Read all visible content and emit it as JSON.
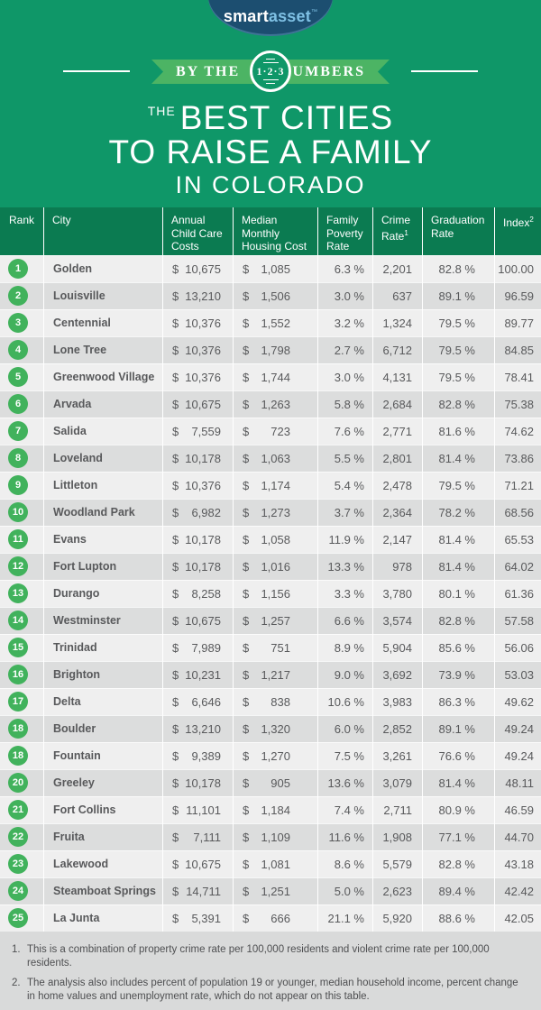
{
  "brand": {
    "logo": {
      "part1": "smart",
      "part2": "asset",
      "tm": "™"
    },
    "colors": {
      "page_green": "#0F9768",
      "header_green": "#0B7B51",
      "ribbon_green": "#4CB464",
      "rank_circle_green": "#41B25C",
      "logo_navy": "#1C4E70",
      "logo_blue": "#7EC0E4",
      "row_light": "#EFEFEF",
      "row_dark": "#DCDDDD",
      "text_gray": "#58595B"
    }
  },
  "banner": {
    "left": "BY THE",
    "circle": "1·2·3",
    "right": "NUMBERS"
  },
  "title": {
    "the": "THE",
    "line1": "BEST CITIES",
    "line2": "TO RAISE A FAMILY",
    "line3": "IN COLORADO"
  },
  "chart_data": {
    "type": "table",
    "title": "The Best Cities to Raise a Family in Colorado",
    "currency": "$",
    "columns": [
      {
        "label": "Rank"
      },
      {
        "label": "City"
      },
      {
        "label": "Annual Child Care Costs"
      },
      {
        "label": "Median Monthly Housing Cost"
      },
      {
        "label": "Family Poverty Rate"
      },
      {
        "label": "Crime Rate",
        "sup": "1"
      },
      {
        "label": "Graduation Rate"
      },
      {
        "label": "Index",
        "sup": "2"
      }
    ],
    "rows": [
      {
        "rank": "1",
        "city": "Golden",
        "child_care": "10,675",
        "housing": "1,085",
        "poverty": "6.3 %",
        "crime": "2,201",
        "graduation": "82.8 %",
        "index": "100.00"
      },
      {
        "rank": "2",
        "city": "Louisville",
        "child_care": "13,210",
        "housing": "1,506",
        "poverty": "3.0 %",
        "crime": "637",
        "graduation": "89.1 %",
        "index": "96.59"
      },
      {
        "rank": "3",
        "city": "Centennial",
        "child_care": "10,376",
        "housing": "1,552",
        "poverty": "3.2 %",
        "crime": "1,324",
        "graduation": "79.5 %",
        "index": "89.77"
      },
      {
        "rank": "4",
        "city": "Lone Tree",
        "child_care": "10,376",
        "housing": "1,798",
        "poverty": "2.7 %",
        "crime": "6,712",
        "graduation": "79.5 %",
        "index": "84.85"
      },
      {
        "rank": "5",
        "city": "Greenwood Village",
        "child_care": "10,376",
        "housing": "1,744",
        "poverty": "3.0 %",
        "crime": "4,131",
        "graduation": "79.5 %",
        "index": "78.41"
      },
      {
        "rank": "6",
        "city": "Arvada",
        "child_care": "10,675",
        "housing": "1,263",
        "poverty": "5.8 %",
        "crime": "2,684",
        "graduation": "82.8 %",
        "index": "75.38"
      },
      {
        "rank": "7",
        "city": "Salida",
        "child_care": "7,559",
        "housing": "723",
        "poverty": "7.6 %",
        "crime": "2,771",
        "graduation": "81.6 %",
        "index": "74.62"
      },
      {
        "rank": "8",
        "city": "Loveland",
        "child_care": "10,178",
        "housing": "1,063",
        "poverty": "5.5 %",
        "crime": "2,801",
        "graduation": "81.4 %",
        "index": "73.86"
      },
      {
        "rank": "9",
        "city": "Littleton",
        "child_care": "10,376",
        "housing": "1,174",
        "poverty": "5.4 %",
        "crime": "2,478",
        "graduation": "79.5 %",
        "index": "71.21"
      },
      {
        "rank": "10",
        "city": "Woodland Park",
        "child_care": "6,982",
        "housing": "1,273",
        "poverty": "3.7 %",
        "crime": "2,364",
        "graduation": "78.2 %",
        "index": "68.56"
      },
      {
        "rank": "11",
        "city": "Evans",
        "child_care": "10,178",
        "housing": "1,058",
        "poverty": "11.9 %",
        "crime": "2,147",
        "graduation": "81.4 %",
        "index": "65.53"
      },
      {
        "rank": "12",
        "city": "Fort Lupton",
        "child_care": "10,178",
        "housing": "1,016",
        "poverty": "13.3 %",
        "crime": "978",
        "graduation": "81.4 %",
        "index": "64.02"
      },
      {
        "rank": "13",
        "city": "Durango",
        "child_care": "8,258",
        "housing": "1,156",
        "poverty": "3.3 %",
        "crime": "3,780",
        "graduation": "80.1 %",
        "index": "61.36"
      },
      {
        "rank": "14",
        "city": "Westminster",
        "child_care": "10,675",
        "housing": "1,257",
        "poverty": "6.6 %",
        "crime": "3,574",
        "graduation": "82.8 %",
        "index": "57.58"
      },
      {
        "rank": "15",
        "city": "Trinidad",
        "child_care": "7,989",
        "housing": "751",
        "poverty": "8.9 %",
        "crime": "5,904",
        "graduation": "85.6 %",
        "index": "56.06"
      },
      {
        "rank": "16",
        "city": "Brighton",
        "child_care": "10,231",
        "housing": "1,217",
        "poverty": "9.0 %",
        "crime": "3,692",
        "graduation": "73.9 %",
        "index": "53.03"
      },
      {
        "rank": "17",
        "city": "Delta",
        "child_care": "6,646",
        "housing": "838",
        "poverty": "10.6 %",
        "crime": "3,983",
        "graduation": "86.3 %",
        "index": "49.62"
      },
      {
        "rank": "18",
        "city": "Boulder",
        "child_care": "13,210",
        "housing": "1,320",
        "poverty": "6.0 %",
        "crime": "2,852",
        "graduation": "89.1 %",
        "index": "49.24"
      },
      {
        "rank": "18",
        "city": "Fountain",
        "child_care": "9,389",
        "housing": "1,270",
        "poverty": "7.5 %",
        "crime": "3,261",
        "graduation": "76.6 %",
        "index": "49.24"
      },
      {
        "rank": "20",
        "city": "Greeley",
        "child_care": "10,178",
        "housing": "905",
        "poverty": "13.6 %",
        "crime": "3,079",
        "graduation": "81.4 %",
        "index": "48.11"
      },
      {
        "rank": "21",
        "city": "Fort Collins",
        "child_care": "11,101",
        "housing": "1,184",
        "poverty": "7.4 %",
        "crime": "2,711",
        "graduation": "80.9 %",
        "index": "46.59"
      },
      {
        "rank": "22",
        "city": "Fruita",
        "child_care": "7,111",
        "housing": "1,109",
        "poverty": "11.6 %",
        "crime": "1,908",
        "graduation": "77.1 %",
        "index": "44.70"
      },
      {
        "rank": "23",
        "city": "Lakewood",
        "child_care": "10,675",
        "housing": "1,081",
        "poverty": "8.6 %",
        "crime": "5,579",
        "graduation": "82.8 %",
        "index": "43.18"
      },
      {
        "rank": "24",
        "city": "Steamboat Springs",
        "child_care": "14,711",
        "housing": "1,251",
        "poverty": "5.0 %",
        "crime": "2,623",
        "graduation": "89.4 %",
        "index": "42.42"
      },
      {
        "rank": "25",
        "city": "La Junta",
        "child_care": "5,391",
        "housing": "666",
        "poverty": "21.1 %",
        "crime": "5,920",
        "graduation": "88.6 %",
        "index": "42.05"
      }
    ]
  },
  "footnotes": [
    {
      "num": "1.",
      "text": "This is a combination of property crime rate per 100,000 residents and violent crime rate per 100,000 residents."
    },
    {
      "num": "2.",
      "text": "The analysis also includes percent of population 19 or younger, median household income, percent change in home values and unemployment rate, which do not appear on this table."
    }
  ]
}
